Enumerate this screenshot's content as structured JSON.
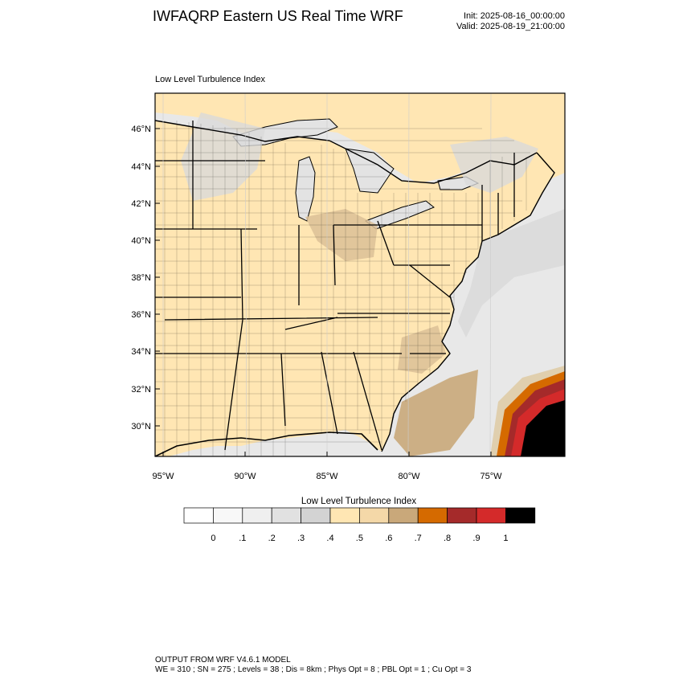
{
  "header": {
    "title": "IWFAQRP Eastern US Real Time WRF",
    "init": "Init: 2025-08-16_00:00:00",
    "valid": "Valid: 2025-08-19_21:00:00"
  },
  "map": {
    "field_label": "Low Level Turbulence Index",
    "lat_ticks": [
      "46°N",
      "44°N",
      "42°N",
      "40°N",
      "38°N",
      "36°N",
      "34°N",
      "32°N",
      "30°N"
    ],
    "lon_ticks": [
      "95°W",
      "90°W",
      "85°W",
      "80°W",
      "75°W"
    ],
    "colors": {
      "land": "#ffe6b3",
      "water": "#e8e8e8",
      "lake": "#e3e3e3",
      "high": "#c9a87a",
      "mid": "#dcbf96",
      "orange": "#d56a00",
      "dark_red": "#a52a2a",
      "red": "#d42a2a",
      "black": "#000000"
    }
  },
  "colorbar": {
    "title": "Low Level Turbulence Index",
    "labels": [
      "0",
      ".1",
      ".2",
      ".3",
      ".4",
      ".5",
      ".6",
      ".7",
      ".8",
      ".9",
      "1"
    ],
    "colors": [
      "#ffffff",
      "#f8f8f8",
      "#efefef",
      "#e1e1e1",
      "#d3d3d3",
      "#ffe6b3",
      "#f4d8a8",
      "#c9a87a",
      "#d56a00",
      "#a52a2a",
      "#d42a2a",
      "#000000"
    ]
  },
  "footer": {
    "line1": "OUTPUT FROM WRF V4.6.1 MODEL",
    "line2": "WE = 310 ; SN = 275 ; Levels = 38 ; Dis = 8km ; Phys Opt = 8 ; PBL Opt = 1 ; Cu Opt = 3"
  }
}
